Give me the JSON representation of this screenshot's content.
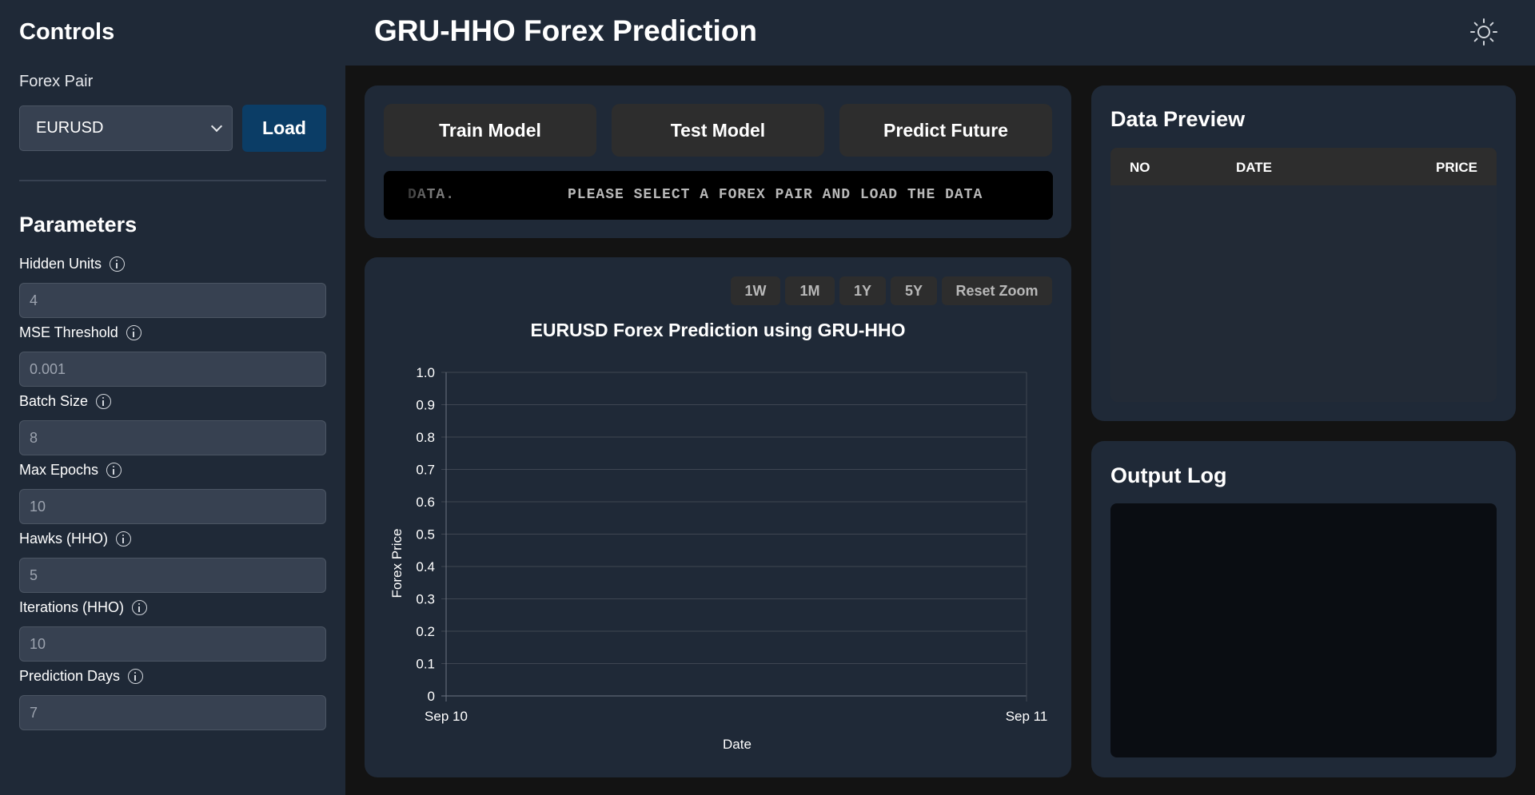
{
  "sidebar": {
    "title": "Controls",
    "forex_pair_label": "Forex Pair",
    "forex_pair_value": "EURUSD",
    "load_label": "Load",
    "params_title": "Parameters",
    "params": [
      {
        "label": "Hidden Units",
        "value": "4"
      },
      {
        "label": "MSE Threshold",
        "value": "0.001"
      },
      {
        "label": "Batch Size",
        "value": "8"
      },
      {
        "label": "Max Epochs",
        "value": "10"
      },
      {
        "label": "Hawks (HHO)",
        "value": "5"
      },
      {
        "label": "Iterations (HHO)",
        "value": "10"
      },
      {
        "label": "Prediction Days",
        "value": "7"
      }
    ]
  },
  "header": {
    "title": "GRU-HHO Forex Prediction",
    "theme_icon": "sun-icon"
  },
  "actions": {
    "train_label": "Train Model",
    "test_label": "Test Model",
    "predict_label": "Predict Future",
    "ticker_main": "PLEASE SELECT A FOREX PAIR AND LOAD THE DATA",
    "ticker_tail": "DATA."
  },
  "chart_controls": {
    "w1": "1W",
    "m1": "1M",
    "y1": "1Y",
    "y5": "5Y",
    "reset": "Reset Zoom"
  },
  "chart_data": {
    "type": "line",
    "title": "EURUSD Forex Prediction using GRU-HHO",
    "xlabel": "Date",
    "ylabel": "Forex Price",
    "x_ticks": [
      "Sep 10",
      "Sep 11"
    ],
    "y_ticks": [
      "0",
      "0.1",
      "0.2",
      "0.3",
      "0.4",
      "0.5",
      "0.6",
      "0.7",
      "0.8",
      "0.9",
      "1.0"
    ],
    "ylim": [
      0,
      1
    ],
    "grid": true,
    "series": []
  },
  "preview": {
    "title": "Data Preview",
    "columns": [
      "NO",
      "DATE",
      "PRICE"
    ]
  },
  "log": {
    "title": "Output Log"
  },
  "colors": {
    "panel": "#1f2937",
    "accent": "#0b3d66",
    "input_bg": "#374151"
  }
}
